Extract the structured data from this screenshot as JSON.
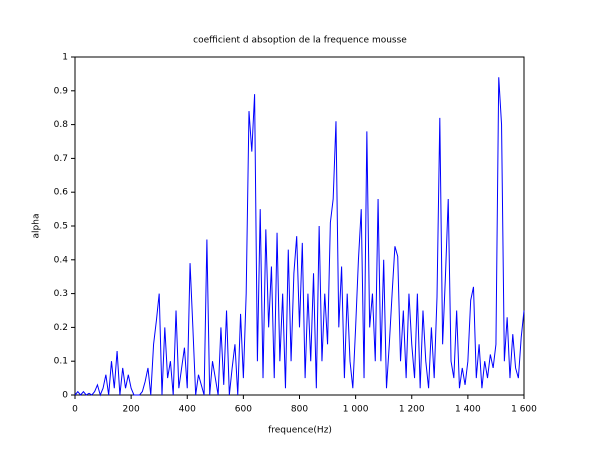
{
  "chart_data": {
    "type": "line",
    "title": "coefficient d absoption de la frequence mousse",
    "xlabel": "frequence(Hz)",
    "ylabel": "alpha",
    "x": [
      0,
      10,
      20,
      30,
      40,
      50,
      60,
      70,
      80,
      90,
      100,
      110,
      120,
      130,
      140,
      150,
      160,
      170,
      180,
      190,
      200,
      210,
      220,
      230,
      240,
      250,
      260,
      270,
      280,
      290,
      300,
      310,
      320,
      330,
      340,
      350,
      360,
      370,
      380,
      390,
      400,
      410,
      420,
      430,
      440,
      450,
      460,
      470,
      480,
      490,
      500,
      510,
      520,
      530,
      540,
      550,
      560,
      570,
      580,
      590,
      600,
      610,
      620,
      630,
      640,
      650,
      660,
      670,
      680,
      690,
      700,
      710,
      720,
      730,
      740,
      750,
      760,
      770,
      780,
      790,
      800,
      810,
      820,
      830,
      840,
      850,
      860,
      870,
      880,
      890,
      900,
      910,
      920,
      930,
      940,
      950,
      960,
      970,
      980,
      990,
      1000,
      1010,
      1020,
      1030,
      1040,
      1050,
      1060,
      1070,
      1080,
      1090,
      1100,
      1110,
      1120,
      1130,
      1140,
      1150,
      1160,
      1170,
      1180,
      1190,
      1200,
      1210,
      1220,
      1230,
      1240,
      1250,
      1260,
      1270,
      1280,
      1290,
      1300,
      1310,
      1320,
      1330,
      1340,
      1350,
      1360,
      1370,
      1380,
      1390,
      1400,
      1410,
      1420,
      1430,
      1440,
      1450,
      1460,
      1470,
      1480,
      1490,
      1500,
      1510,
      1520,
      1530,
      1540,
      1550,
      1560,
      1570,
      1580,
      1590,
      1600
    ],
    "series": [
      {
        "color": "#0000ff",
        "values": [
          0,
          0.01,
          0,
          0.01,
          0,
          0.005,
          0,
          0.01,
          0.03,
          0,
          0.02,
          0.06,
          0,
          0.1,
          0.02,
          0.13,
          0,
          0.08,
          0.02,
          0.06,
          0.02,
          0,
          0,
          0,
          0.01,
          0.04,
          0.08,
          0,
          0.15,
          0.22,
          0.3,
          0,
          0.2,
          0.05,
          0.1,
          0,
          0.25,
          0.02,
          0.08,
          0.14,
          0.02,
          0.39,
          0.2,
          0,
          0.06,
          0.03,
          0,
          0.46,
          0,
          0.1,
          0.05,
          0,
          0.2,
          0.03,
          0.25,
          0,
          0.08,
          0.15,
          0,
          0.24,
          0.05,
          0.3,
          0.84,
          0.72,
          0.89,
          0.1,
          0.55,
          0.05,
          0.49,
          0.2,
          0.38,
          0.05,
          0.48,
          0.1,
          0.3,
          0.02,
          0.43,
          0.1,
          0.36,
          0.47,
          0.2,
          0.45,
          0.05,
          0.3,
          0.1,
          0.36,
          0.02,
          0.5,
          0.1,
          0.3,
          0.15,
          0.51,
          0.58,
          0.81,
          0.2,
          0.38,
          0.05,
          0.3,
          0.1,
          0.02,
          0.2,
          0.4,
          0.55,
          0.05,
          0.78,
          0.2,
          0.3,
          0.1,
          0.58,
          0.1,
          0.4,
          0.02,
          0.15,
          0.3,
          0.44,
          0.41,
          0.1,
          0.25,
          0.05,
          0.3,
          0.15,
          0.05,
          0.3,
          0.02,
          0.25,
          0.1,
          0.02,
          0.2,
          0.05,
          0.29,
          0.82,
          0.15,
          0.35,
          0.58,
          0.1,
          0.05,
          0.25,
          0.02,
          0.08,
          0.03,
          0.1,
          0.28,
          0.32,
          0.05,
          0.15,
          0.02,
          0.1,
          0.05,
          0.12,
          0.08,
          0.15,
          0.94,
          0.8,
          0.1,
          0.23,
          0.05,
          0.18,
          0.08,
          0.05,
          0.17,
          0.25
        ]
      }
    ],
    "xlim": [
      0,
      1600
    ],
    "xticks": [
      0,
      200,
      400,
      600,
      800,
      {
        "value": 1000,
        "label": "1 000"
      },
      {
        "value": 1200,
        "label": "1 200"
      },
      {
        "value": 1400,
        "label": "1 400"
      },
      {
        "value": 1600,
        "label": "1 600"
      }
    ],
    "ylim": [
      0,
      1
    ],
    "yticks": [
      0,
      0.1,
      0.2,
      0.3,
      0.4,
      0.5,
      0.6,
      0.7,
      0.8,
      0.9,
      1
    ]
  }
}
